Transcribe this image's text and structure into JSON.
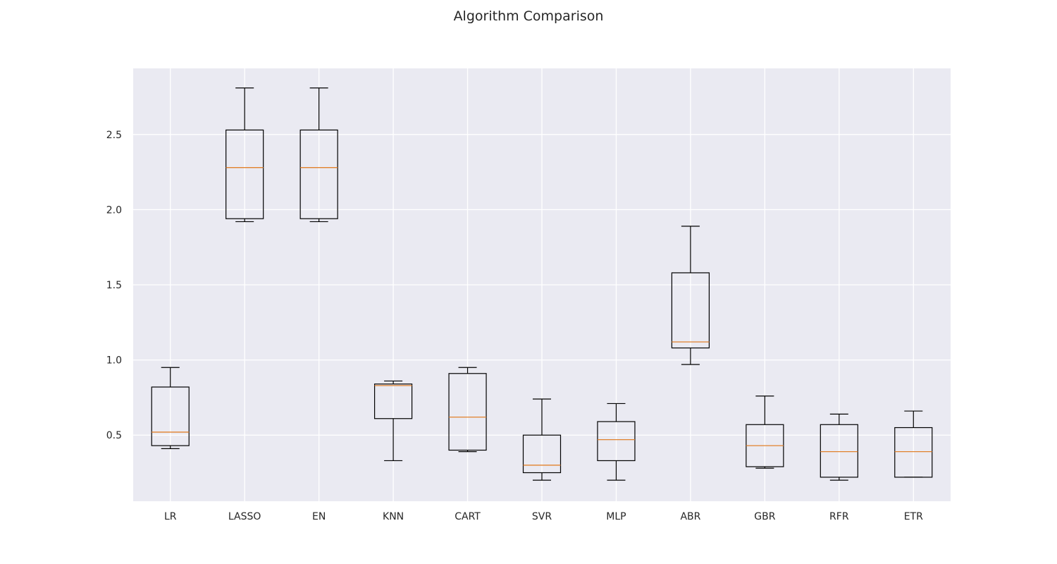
{
  "chart_data": {
    "type": "box",
    "title": "Algorithm Comparison",
    "xlabel": "",
    "ylabel": "",
    "ylim": [
      0.06,
      2.94
    ],
    "yticks": [
      "0.5",
      "1.0",
      "1.5",
      "2.0",
      "2.5"
    ],
    "grid": true,
    "categories": [
      "LR",
      "LASSO",
      "EN",
      "KNN",
      "CART",
      "SVR",
      "MLP",
      "ABR",
      "GBR",
      "RFR",
      "ETR"
    ],
    "boxes": [
      {
        "whisker_low": 0.41,
        "q1": 0.43,
        "median": 0.52,
        "q3": 0.82,
        "whisker_high": 0.95
      },
      {
        "whisker_low": 1.92,
        "q1": 1.94,
        "median": 2.28,
        "q3": 2.53,
        "whisker_high": 2.81
      },
      {
        "whisker_low": 1.92,
        "q1": 1.94,
        "median": 2.28,
        "q3": 2.53,
        "whisker_high": 2.81
      },
      {
        "whisker_low": 0.33,
        "q1": 0.61,
        "median": 0.83,
        "q3": 0.84,
        "whisker_high": 0.86
      },
      {
        "whisker_low": 0.39,
        "q1": 0.4,
        "median": 0.62,
        "q3": 0.91,
        "whisker_high": 0.95
      },
      {
        "whisker_low": 0.2,
        "q1": 0.25,
        "median": 0.3,
        "q3": 0.5,
        "whisker_high": 0.74
      },
      {
        "whisker_low": 0.2,
        "q1": 0.33,
        "median": 0.47,
        "q3": 0.59,
        "whisker_high": 0.71
      },
      {
        "whisker_low": 0.97,
        "q1": 1.08,
        "median": 1.12,
        "q3": 1.58,
        "whisker_high": 1.89
      },
      {
        "whisker_low": 0.28,
        "q1": 0.29,
        "median": 0.43,
        "q3": 0.57,
        "whisker_high": 0.76
      },
      {
        "whisker_low": 0.2,
        "q1": 0.22,
        "median": 0.39,
        "q3": 0.57,
        "whisker_high": 0.64
      },
      {
        "whisker_low": 0.22,
        "q1": 0.22,
        "median": 0.39,
        "q3": 0.55,
        "whisker_high": 0.66
      }
    ],
    "colors": {
      "background": "#eaeaf2",
      "grid": "#ffffff",
      "box": "#000000",
      "median": "#e1812c"
    }
  }
}
